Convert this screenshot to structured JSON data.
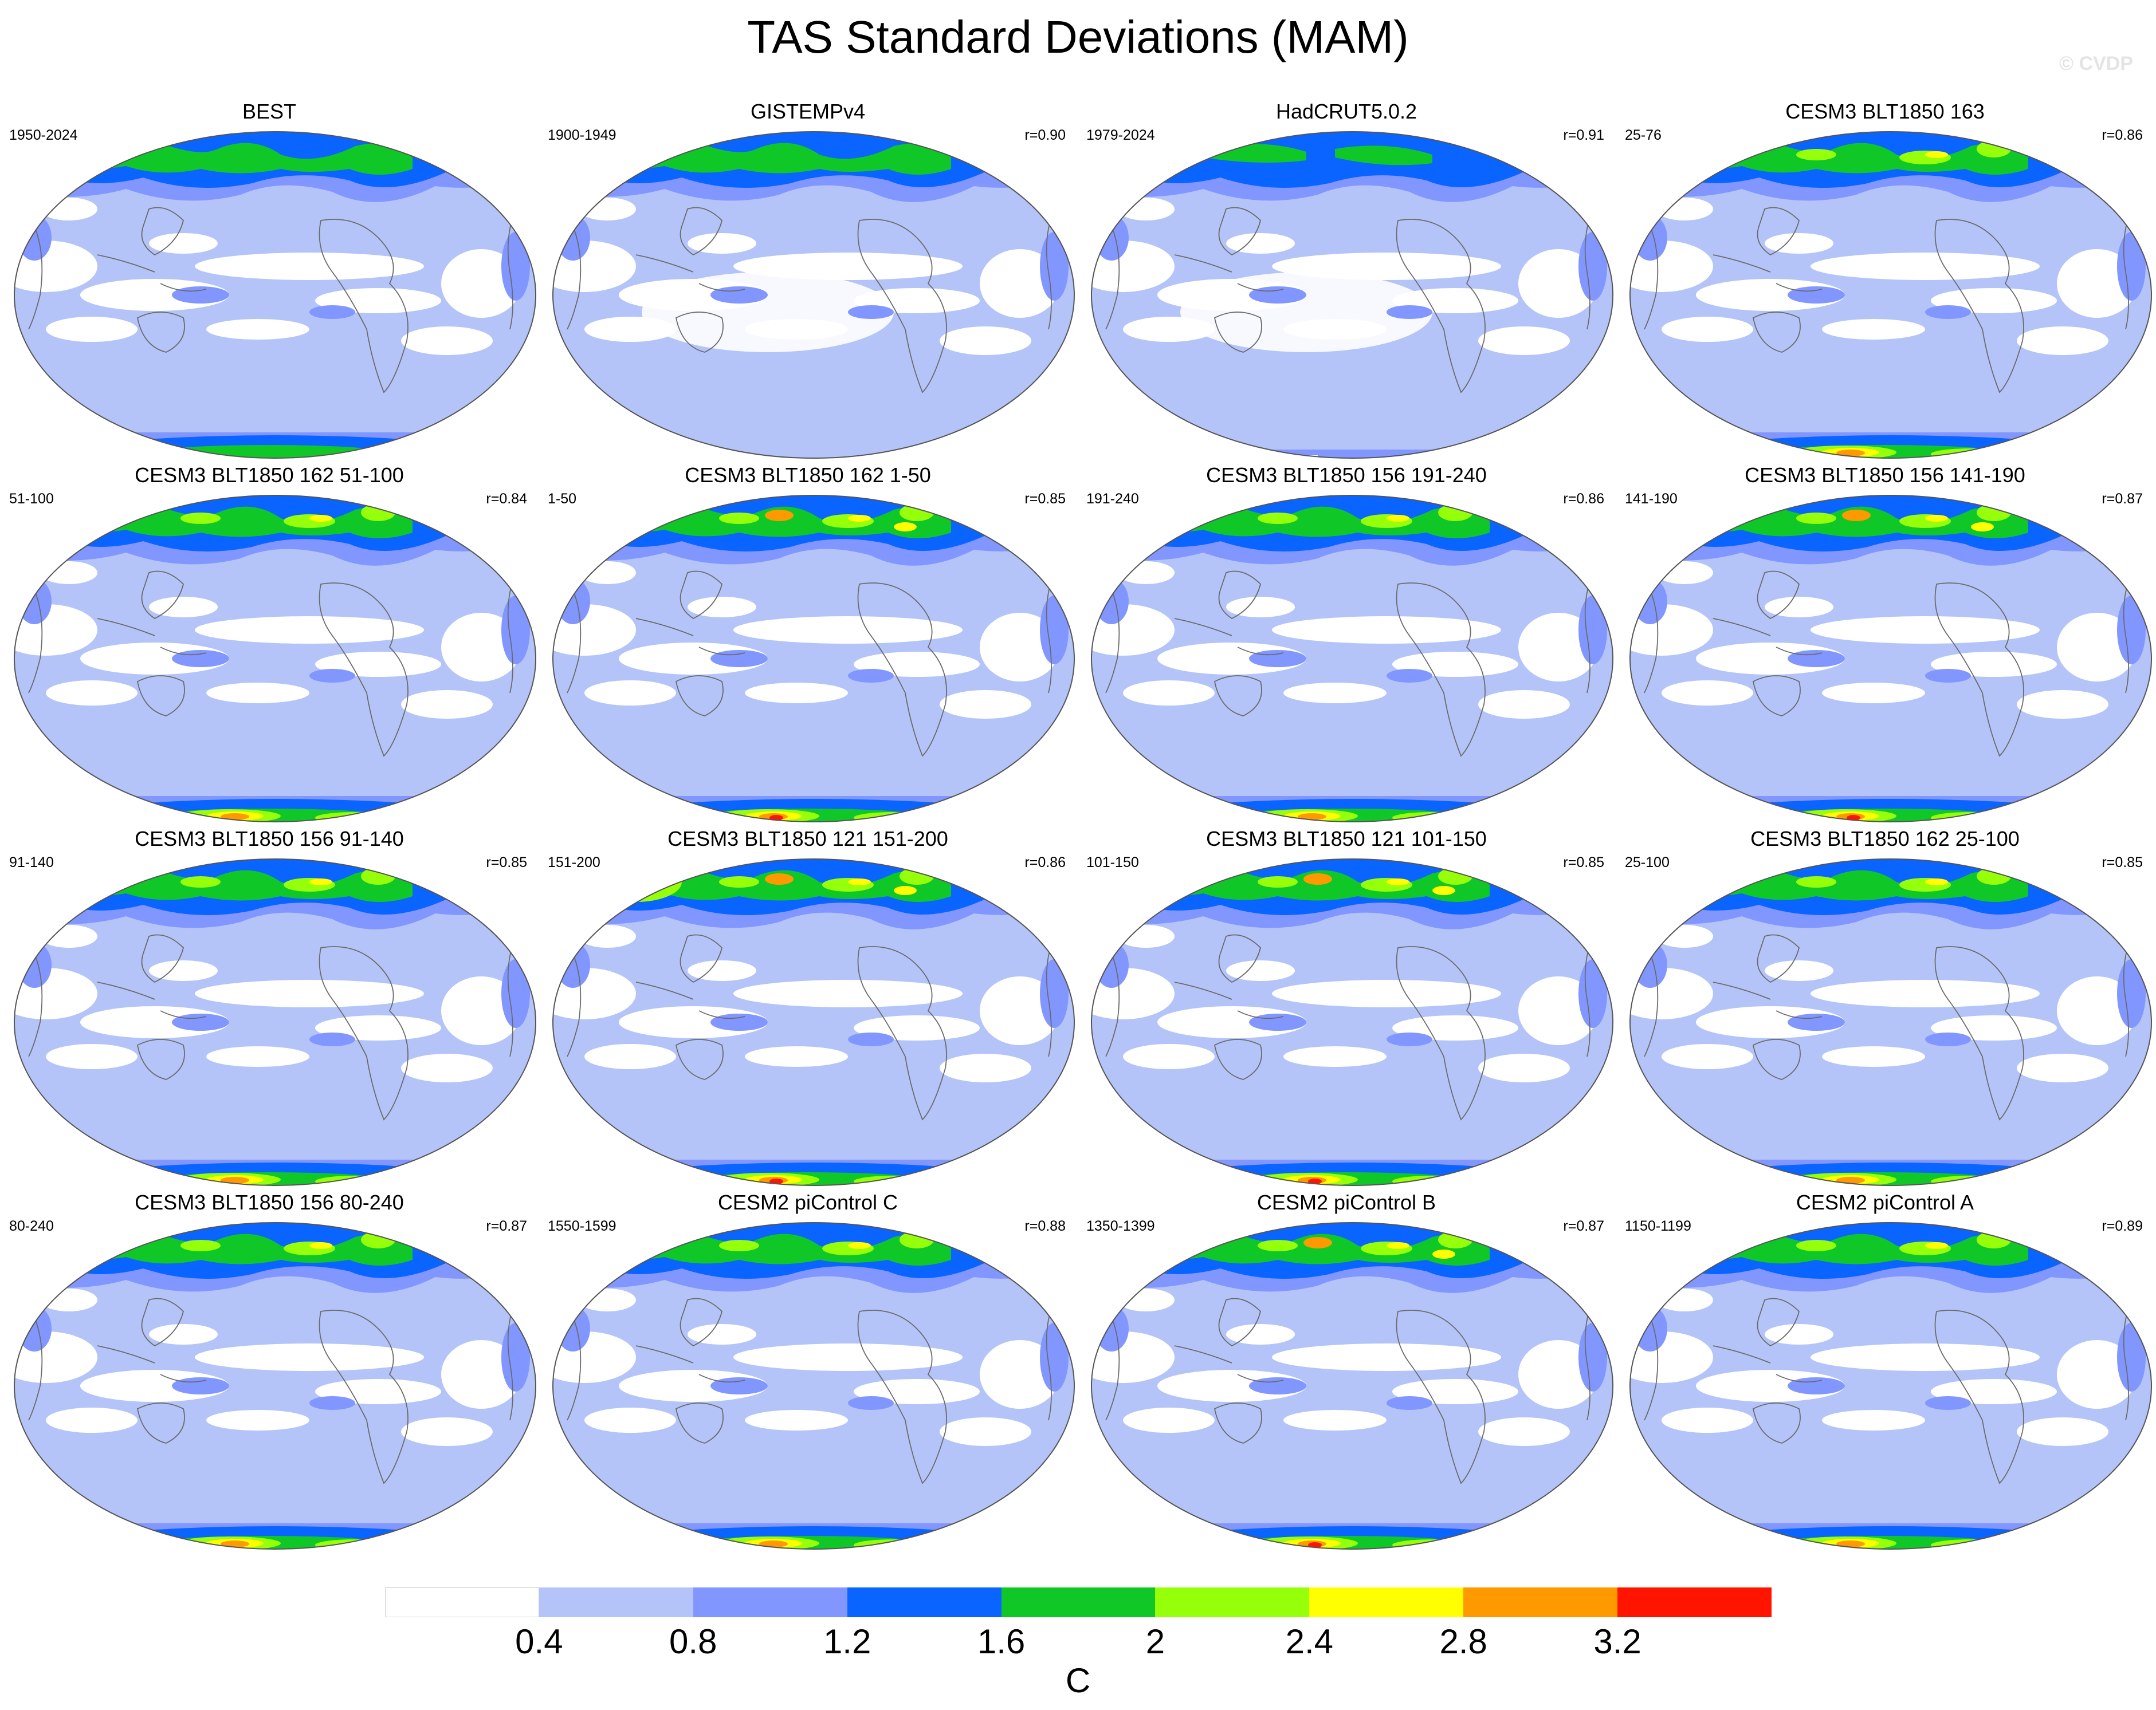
{
  "title": "TAS Standard Deviations (MAM)",
  "watermark": "© CVDP",
  "colors": [
    "#ffffff",
    "#b4c4f8",
    "#8296ff",
    "#0a64ff",
    "#0fc828",
    "#96ff0a",
    "#ffff00",
    "#ff9900",
    "#ff1400"
  ],
  "panels": [
    {
      "title": "BEST",
      "years": "1950-2024",
      "r": "",
      "variant": 0
    },
    {
      "title": "GISTEMPv4",
      "years": "1900-1949",
      "r": "r=0.90",
      "variant": 1
    },
    {
      "title": "HadCRUT5.0.2",
      "years": "1979-2024",
      "r": "r=0.91",
      "variant": 2
    },
    {
      "title": "CESM3 BLT1850 163",
      "years": "25-76",
      "r": "r=0.86",
      "variant": 3
    },
    {
      "title": "CESM3 BLT1850 162 51-100",
      "years": "51-100",
      "r": "r=0.84",
      "variant": 3
    },
    {
      "title": "CESM3 BLT1850 162 1-50",
      "years": "1-50",
      "r": "r=0.85",
      "variant": 4
    },
    {
      "title": "CESM3 BLT1850 156 191-240",
      "years": "191-240",
      "r": "r=0.86",
      "variant": 3
    },
    {
      "title": "CESM3 BLT1850 156 141-190",
      "years": "141-190",
      "r": "r=0.87",
      "variant": 4
    },
    {
      "title": "CESM3 BLT1850 156 91-140",
      "years": "91-140",
      "r": "r=0.85",
      "variant": 3
    },
    {
      "title": "CESM3 BLT1850 121 151-200",
      "years": "151-200",
      "r": "r=0.86",
      "variant": 5
    },
    {
      "title": "CESM3 BLT1850 121 101-150",
      "years": "101-150",
      "r": "r=0.85",
      "variant": 4
    },
    {
      "title": "CESM3 BLT1850 162 25-100",
      "years": "25-100",
      "r": "r=0.85",
      "variant": 3
    },
    {
      "title": "CESM3 BLT1850 156 80-240",
      "years": "80-240",
      "r": "r=0.87",
      "variant": 3
    },
    {
      "title": "CESM2 piControl C",
      "years": "1550-1599",
      "r": "r=0.88",
      "variant": 3
    },
    {
      "title": "CESM2 piControl B",
      "years": "1350-1399",
      "r": "r=0.87",
      "variant": 4
    },
    {
      "title": "CESM2 piControl A",
      "years": "1150-1199",
      "r": "r=0.89",
      "variant": 3
    }
  ],
  "colorbar": {
    "labels": [
      "0.4",
      "0.8",
      "1.2",
      "1.6",
      "2",
      "2.4",
      "2.8",
      "3.2"
    ],
    "units": "C"
  }
}
